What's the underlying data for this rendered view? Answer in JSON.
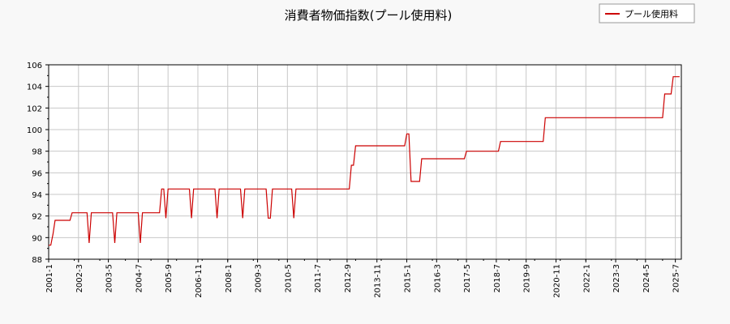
{
  "chart_data": {
    "type": "line",
    "title": "消費者物価指数(プール使用料)",
    "xlabel": "",
    "ylabel": "",
    "ylim": [
      88,
      106
    ],
    "y_ticks": [
      88,
      90,
      92,
      94,
      96,
      98,
      100,
      102,
      104,
      106
    ],
    "x_ticks": [
      "2001-1",
      "2002-3",
      "2003-5",
      "2004-7",
      "2005-9",
      "2006-11",
      "2008-1",
      "2009-3",
      "2010-5",
      "2011-7",
      "2012-9",
      "2013-11",
      "2015-1",
      "2016-3",
      "2017-5",
      "2018-7",
      "2019-9",
      "2020-11",
      "2022-1",
      "2023-3",
      "2024-5",
      "2025-7"
    ],
    "grid": true,
    "legend_position": "top-right",
    "colors": {
      "series": "#cc0000",
      "grid": "#c8c8c8",
      "background": "#ffffff",
      "page": "#f8f8f8"
    },
    "series": [
      {
        "name": "プール使用料",
        "points": [
          [
            "2001-1",
            89.3
          ],
          [
            "2001-2",
            89.3
          ],
          [
            "2001-3",
            90.3
          ],
          [
            "2001-4",
            91.6
          ],
          [
            "2001-5",
            91.6
          ],
          [
            "2001-11",
            91.6
          ],
          [
            "2001-12",
            92.3
          ],
          [
            "2002-7",
            92.3
          ],
          [
            "2002-8",
            89.5
          ],
          [
            "2002-9",
            92.3
          ],
          [
            "2003-7",
            92.3
          ],
          [
            "2003-8",
            89.5
          ],
          [
            "2003-9",
            92.3
          ],
          [
            "2004-7",
            92.3
          ],
          [
            "2004-8",
            89.5
          ],
          [
            "2004-9",
            92.3
          ],
          [
            "2005-5",
            92.3
          ],
          [
            "2005-6",
            94.5
          ],
          [
            "2005-7",
            94.5
          ],
          [
            "2005-8",
            91.8
          ],
          [
            "2005-9",
            94.5
          ],
          [
            "2006-7",
            94.5
          ],
          [
            "2006-8",
            91.8
          ],
          [
            "2006-9",
            94.5
          ],
          [
            "2007-7",
            94.5
          ],
          [
            "2007-8",
            91.8
          ],
          [
            "2007-9",
            94.5
          ],
          [
            "2008-7",
            94.5
          ],
          [
            "2008-8",
            91.8
          ],
          [
            "2008-9",
            94.5
          ],
          [
            "2009-7",
            94.5
          ],
          [
            "2009-8",
            91.8
          ],
          [
            "2009-9",
            91.8
          ],
          [
            "2009-10",
            94.5
          ],
          [
            "2010-7",
            94.5
          ],
          [
            "2010-8",
            91.8
          ],
          [
            "2010-9",
            94.5
          ],
          [
            "2012-10",
            94.5
          ],
          [
            "2012-11",
            96.7
          ],
          [
            "2012-12",
            96.7
          ],
          [
            "2013-1",
            98.5
          ],
          [
            "2014-12",
            98.5
          ],
          [
            "2015-1",
            99.6
          ],
          [
            "2015-2",
            99.6
          ],
          [
            "2015-3",
            95.2
          ],
          [
            "2015-7",
            95.2
          ],
          [
            "2015-8",
            97.3
          ],
          [
            "2017-4",
            97.3
          ],
          [
            "2017-5",
            98.0
          ],
          [
            "2018-8",
            98.0
          ],
          [
            "2018-9",
            98.9
          ],
          [
            "2020-5",
            98.9
          ],
          [
            "2020-6",
            101.1
          ],
          [
            "2025-1",
            101.1
          ],
          [
            "2025-2",
            103.3
          ],
          [
            "2025-5",
            103.3
          ],
          [
            "2025-6",
            104.9
          ],
          [
            "2025-9",
            104.9
          ]
        ]
      }
    ]
  }
}
